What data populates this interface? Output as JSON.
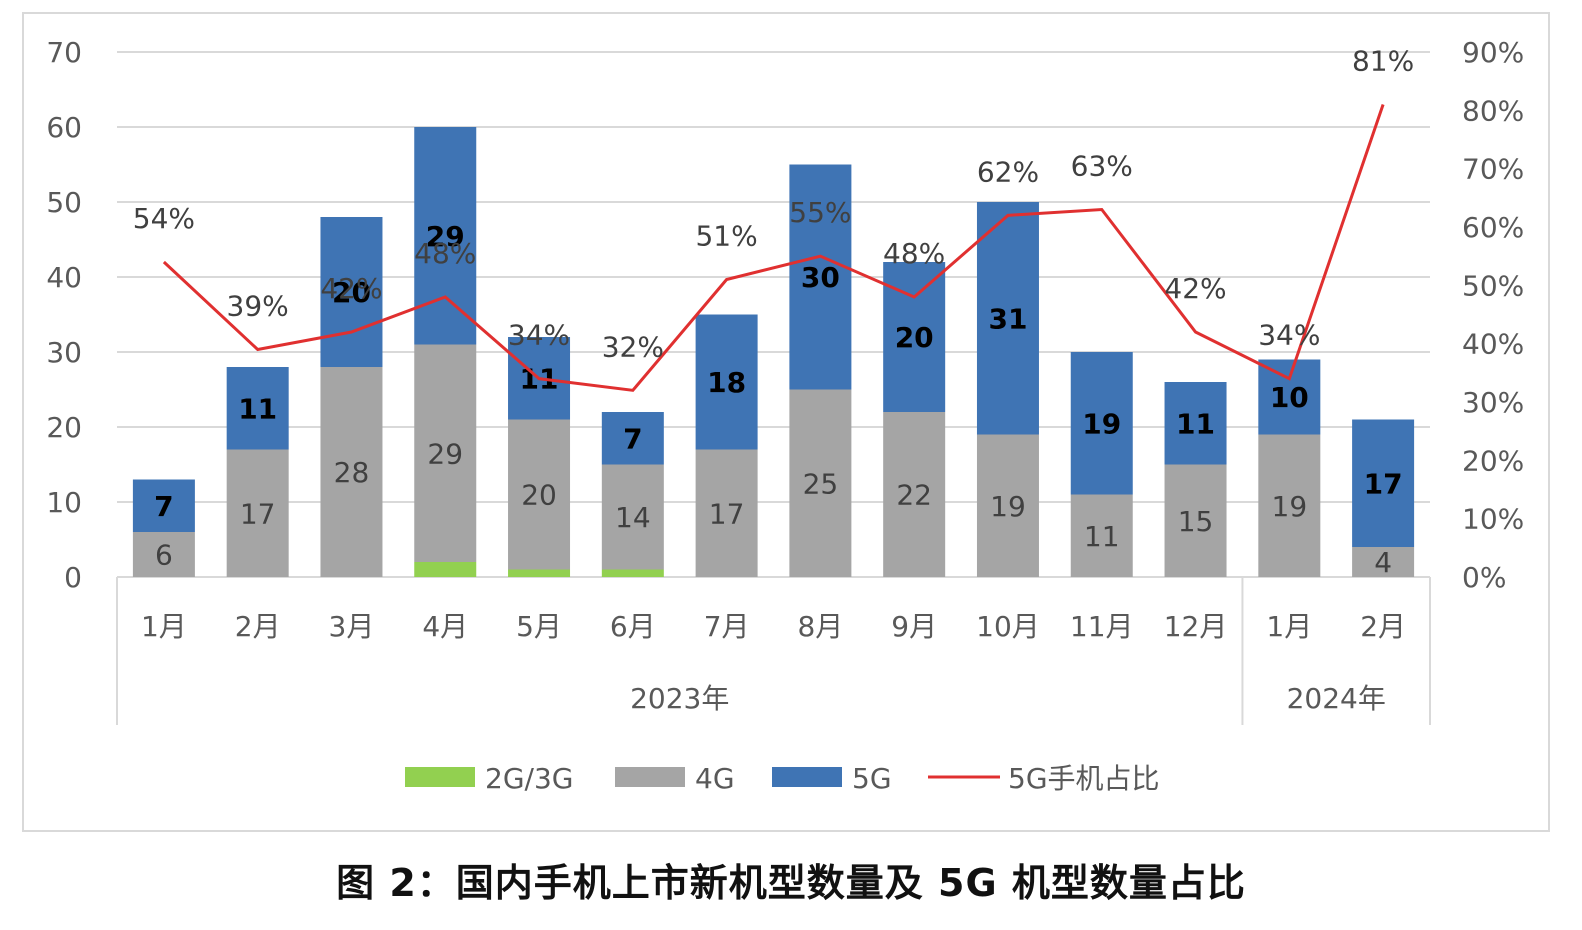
{
  "caption": "图 2：国内手机上市新机型数量及 5G 机型数量占比",
  "chart_data": {
    "type": "bar",
    "stacked": true,
    "categories": [
      "1月",
      "2月",
      "3月",
      "4月",
      "5月",
      "6月",
      "7月",
      "8月",
      "9月",
      "10月",
      "11月",
      "12月",
      "1月",
      "2月"
    ],
    "year_groups": [
      {
        "label": "2023年",
        "count": 12
      },
      {
        "label": "2024年",
        "count": 2
      }
    ],
    "series": [
      {
        "name": "2G/3G",
        "color": "#92d050",
        "values": [
          0,
          0,
          0,
          2,
          1,
          1,
          0,
          0,
          0,
          0,
          0,
          0,
          0,
          0
        ],
        "labels": false
      },
      {
        "name": "4G",
        "color": "#a5a5a5",
        "values": [
          6,
          17,
          28,
          29,
          20,
          14,
          17,
          25,
          22,
          19,
          11,
          15,
          19,
          4
        ],
        "labels": true
      },
      {
        "name": "5G",
        "color": "#3f74b4",
        "values": [
          7,
          11,
          20,
          29,
          11,
          7,
          18,
          30,
          20,
          31,
          19,
          11,
          10,
          17
        ],
        "labels": true
      }
    ],
    "line_series": {
      "name": "5G手机占比",
      "color": "#e03030",
      "values": [
        54,
        39,
        42,
        48,
        34,
        32,
        51,
        55,
        48,
        62,
        63,
        42,
        34,
        81
      ],
      "labels": [
        "54%",
        "39%",
        "42%",
        "48%",
        "34%",
        "32%",
        "51%",
        "55%",
        "48%",
        "62%",
        "63%",
        "42%",
        "34%",
        "81%"
      ],
      "axis": "right"
    },
    "y_left": {
      "min": 0,
      "max": 70,
      "ticks": [
        "0",
        "10",
        "20",
        "30",
        "40",
        "50",
        "60",
        "70"
      ]
    },
    "y_right": {
      "min": 0,
      "max": 90,
      "ticks": [
        "0%",
        "10%",
        "20%",
        "30%",
        "40%",
        "50%",
        "60%",
        "70%",
        "80%",
        "90%"
      ]
    },
    "legend": [
      "2G/3G",
      "4G",
      "5G",
      "5G手机占比"
    ],
    "legend_position": "bottom",
    "grid": true
  }
}
